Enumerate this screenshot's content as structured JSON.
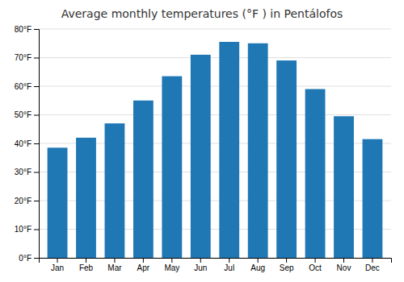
{
  "chart_data": {
    "type": "bar",
    "title": "Average monthly temperatures (°F ) in Pentálofos",
    "categories": [
      "Jan",
      "Feb",
      "Mar",
      "Apr",
      "May",
      "Jun",
      "Jul",
      "Aug",
      "Sep",
      "Oct",
      "Nov",
      "Dec"
    ],
    "values": [
      38.5,
      42.0,
      47.0,
      55.0,
      63.5,
      71.0,
      75.5,
      75.0,
      69.0,
      59.0,
      49.5,
      41.5
    ],
    "ylim": [
      0,
      80
    ],
    "yticks": [
      {
        "value": 0,
        "label": "0°F"
      },
      {
        "value": 10,
        "label": "10°F"
      },
      {
        "value": 20,
        "label": "20°F"
      },
      {
        "value": 30,
        "label": "30°F"
      },
      {
        "value": 40,
        "label": "40°F"
      },
      {
        "value": 50,
        "label": "50°F"
      },
      {
        "value": 60,
        "label": "60°F"
      },
      {
        "value": 70,
        "label": "70°F"
      },
      {
        "value": 80,
        "label": "80°F"
      }
    ],
    "grid": true
  }
}
